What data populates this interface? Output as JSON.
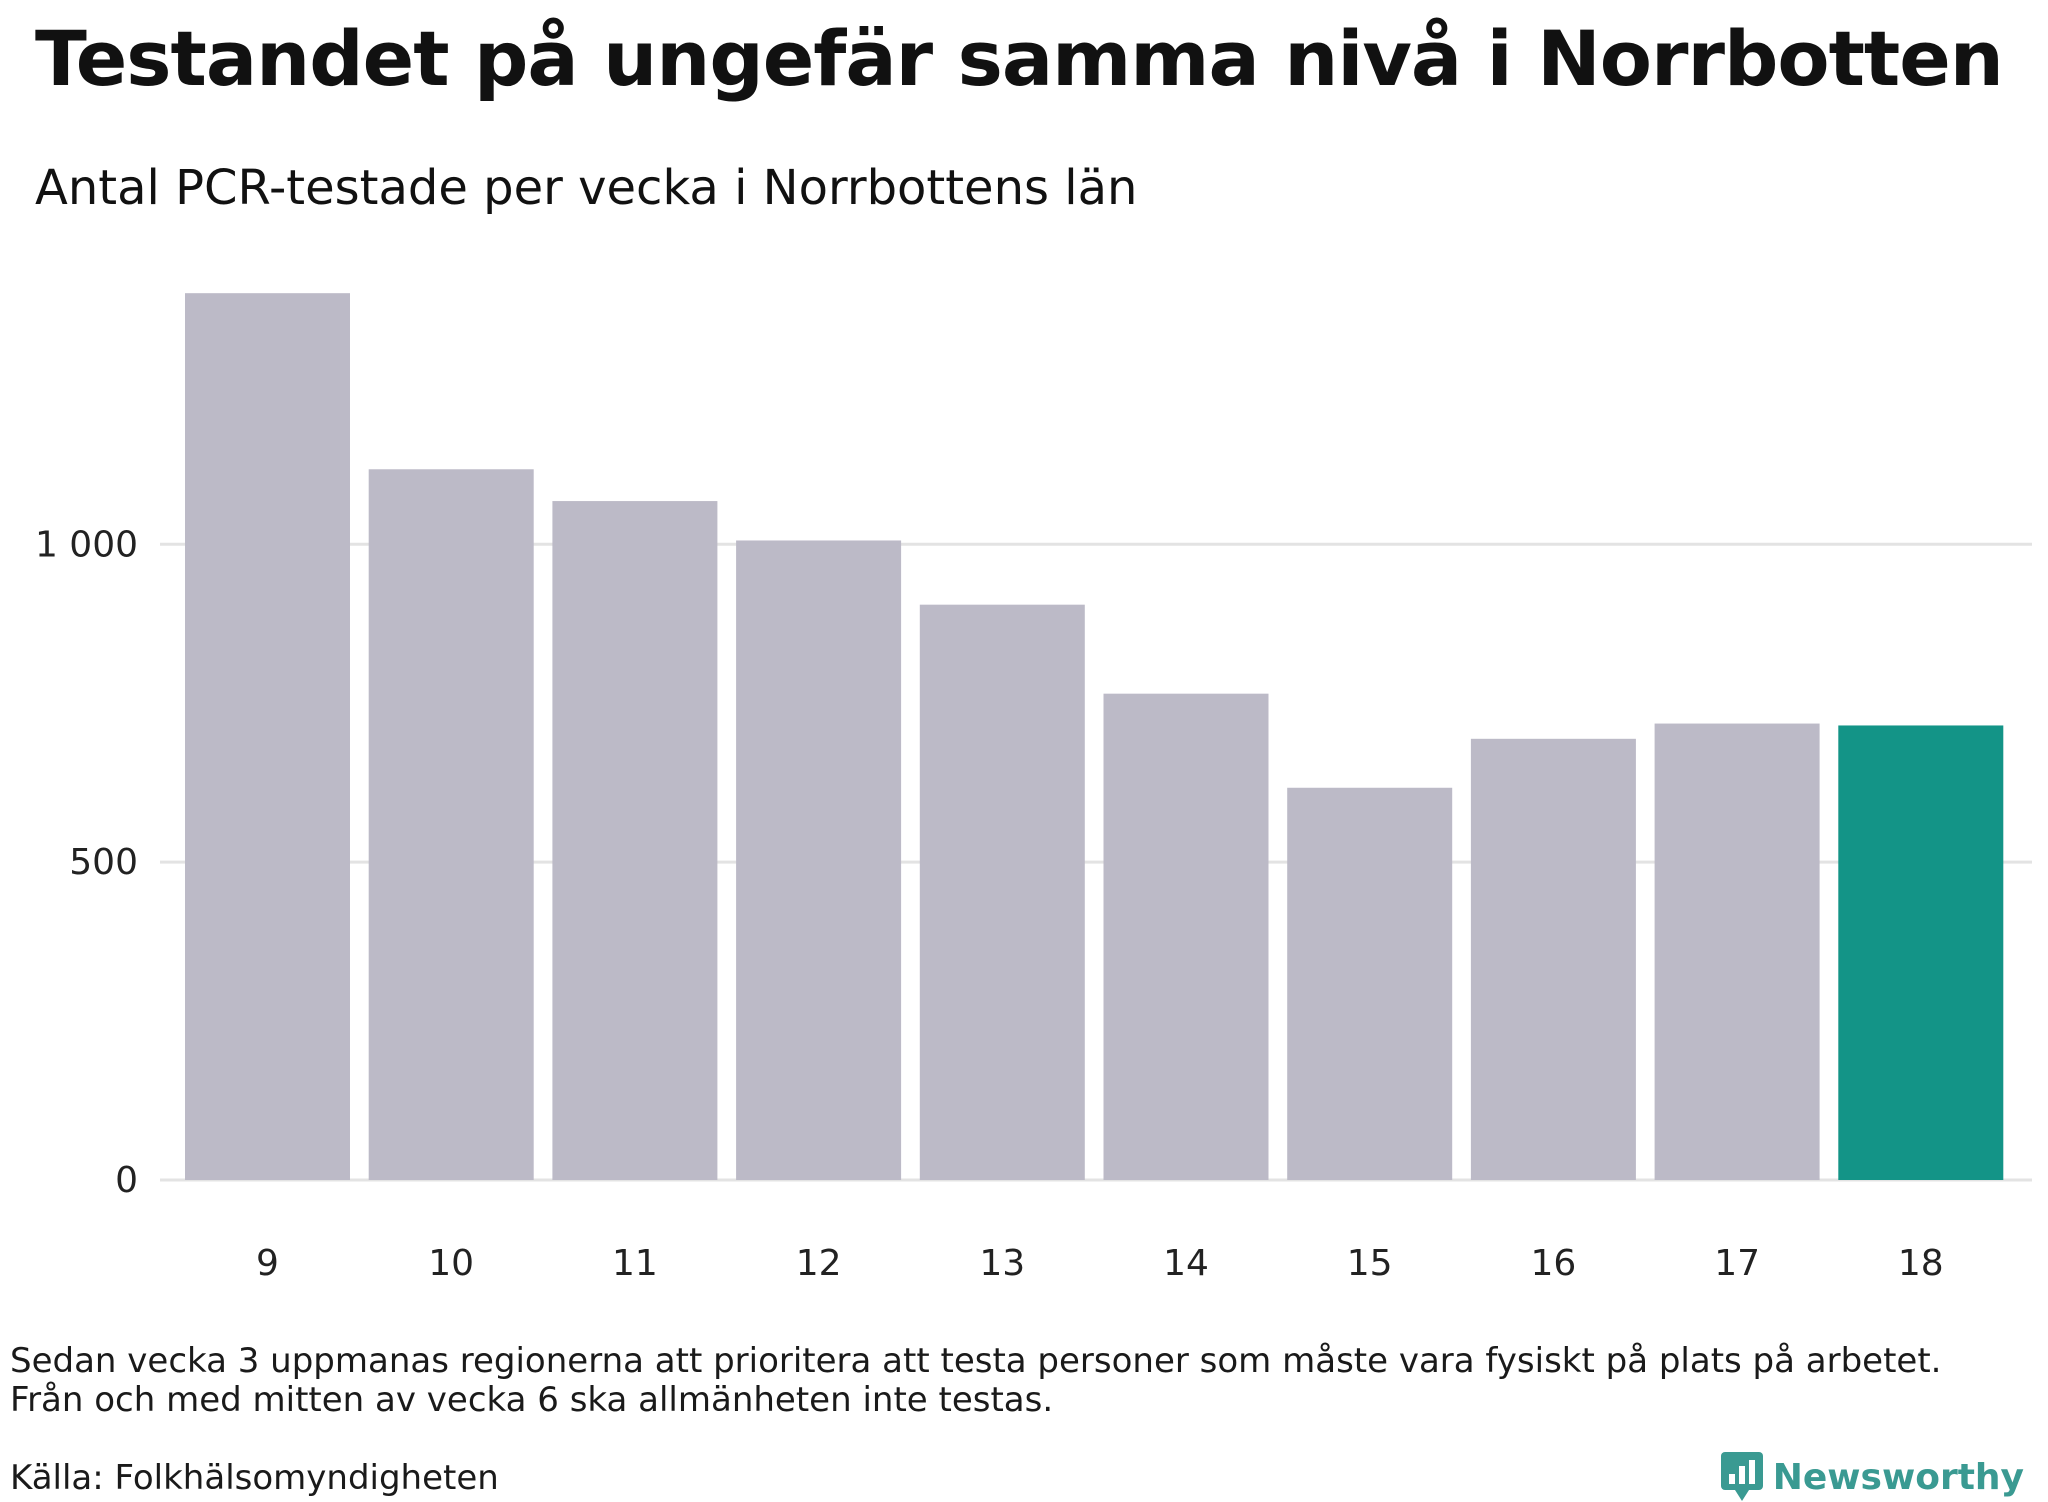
{
  "title": "Testandet på ungefär samma nivå i Norrbotten",
  "subtitle": "Antal PCR-testade per vecka i Norrbottens län",
  "chart_data": {
    "type": "bar",
    "title": "Testandet på ungefär samma nivå i Norrbotten",
    "subtitle": "Antal PCR-testade per vecka i Norrbottens län",
    "xlabel": "",
    "ylabel": "",
    "categories": [
      "9",
      "10",
      "11",
      "12",
      "13",
      "14",
      "15",
      "16",
      "17",
      "18"
    ],
    "values": [
      1395,
      1118,
      1068,
      1006,
      905,
      765,
      617,
      694,
      718,
      715
    ],
    "highlight_index": 9,
    "ylim": [
      0,
      1400
    ],
    "yticks": [
      0,
      500,
      1000
    ],
    "ytick_labels": [
      "0",
      "500",
      "1 000"
    ],
    "grid": true,
    "colors": {
      "default": "#bcbac7",
      "highlight": "#139487",
      "grid": "#e3e3e3"
    }
  },
  "note": {
    "line1": "Sedan vecka 3 uppmanas regionerna att prioritera att testa personer som måste vara fysiskt på plats på arbetet.",
    "line2": "Från och med mitten av vecka 6 ska allmänheten inte testas."
  },
  "source": "Källa: Folkhälsomyndigheten",
  "brand": {
    "name": "Newsworthy",
    "icon": "bar-chart-speech-icon",
    "color": "#3a9a92"
  }
}
